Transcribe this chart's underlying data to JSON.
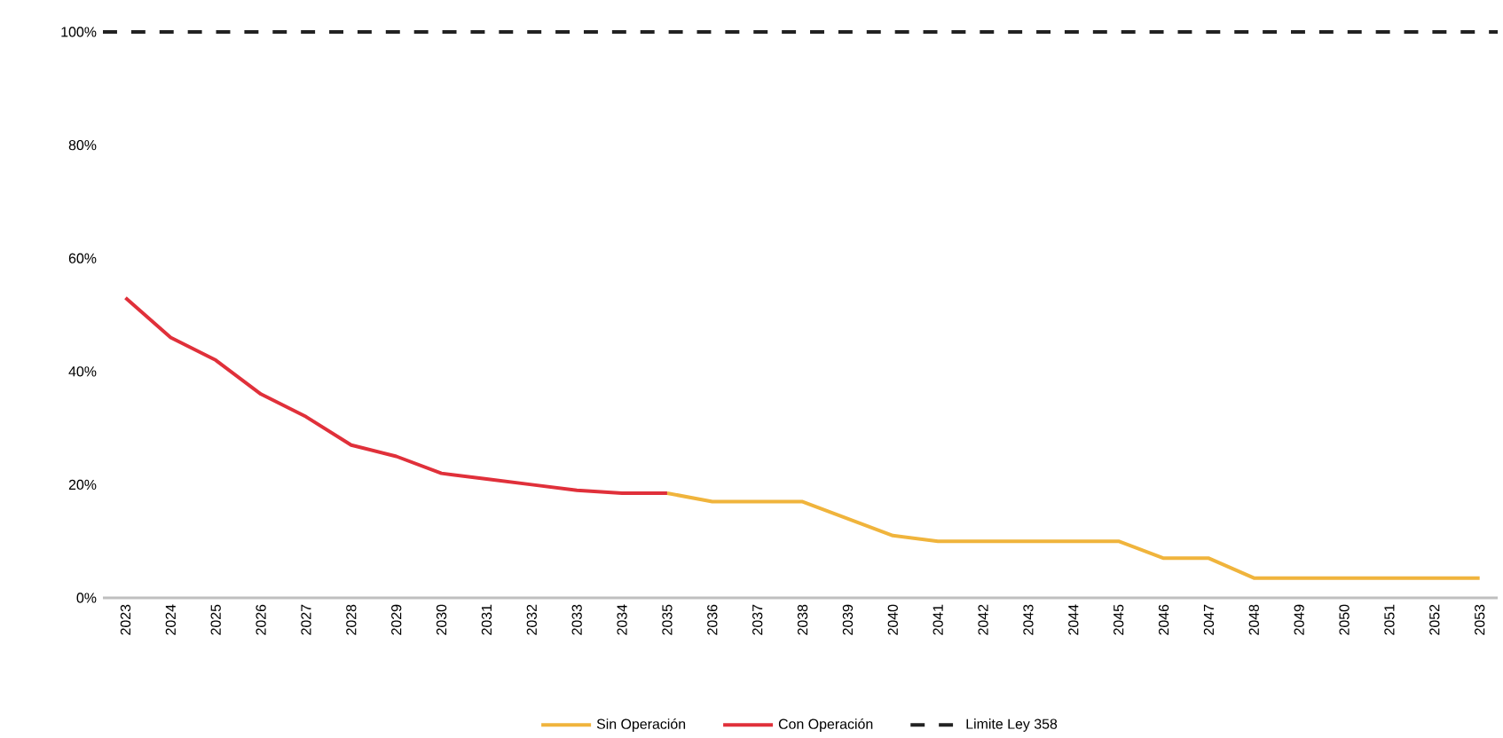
{
  "chart_data": {
    "type": "line",
    "categories": [
      "2023",
      "2024",
      "2025",
      "2026",
      "2027",
      "2028",
      "2029",
      "2030",
      "2031",
      "2032",
      "2033",
      "2034",
      "2035",
      "2036",
      "2037",
      "2038",
      "2039",
      "2040",
      "2041",
      "2042",
      "2043",
      "2044",
      "2045",
      "2046",
      "2047",
      "2048",
      "2049",
      "2050",
      "2051",
      "2052",
      "2053"
    ],
    "series": [
      {
        "name": "Sin Operación",
        "color": "#f0b43c",
        "values": [
          null,
          null,
          null,
          null,
          null,
          null,
          null,
          null,
          null,
          null,
          null,
          null,
          18.5,
          17,
          17,
          17,
          14,
          11,
          10,
          10,
          10,
          10,
          10,
          7,
          7,
          3.5,
          3.5,
          3.5,
          3.5,
          3.5,
          3.5
        ]
      },
      {
        "name": "Con Operación",
        "color": "#e0303a",
        "values": [
          53,
          46,
          42,
          36,
          32,
          27,
          25,
          22,
          21,
          20,
          19,
          18.5,
          18.5,
          null,
          null,
          null,
          null,
          null,
          null,
          null,
          null,
          null,
          null,
          null,
          null,
          null,
          null,
          null,
          null,
          null,
          null
        ]
      }
    ],
    "ref_lines": [
      {
        "axis": "y",
        "value": 100,
        "label": "Limite Ley 358",
        "color": "#222222",
        "line_style": "dashed"
      }
    ],
    "ylim": [
      0,
      100
    ],
    "yticks": [
      {
        "value": 0,
        "label": "0%"
      },
      {
        "value": 20,
        "label": "20%"
      },
      {
        "value": 40,
        "label": "40%"
      },
      {
        "value": 60,
        "label": "60%"
      },
      {
        "value": 80,
        "label": "80%"
      },
      {
        "value": 100,
        "label": "100%"
      }
    ],
    "grid": false,
    "legend": "bottom",
    "marker": "none",
    "line_style": "solid"
  }
}
